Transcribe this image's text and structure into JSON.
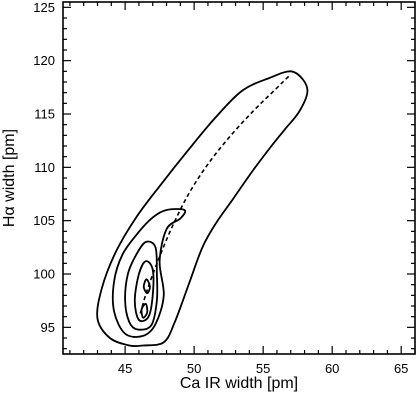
{
  "chart_data": {
    "type": "contour",
    "title": "",
    "xlabel": "Ca IR width [pm]",
    "ylabel": "Hα width [pm]",
    "xlim": [
      40.5,
      66
    ],
    "ylim": [
      92.5,
      125.5
    ],
    "x_ticks": [
      45,
      50,
      55,
      60,
      65
    ],
    "y_ticks": [
      95,
      100,
      105,
      110,
      115,
      120,
      125
    ],
    "x_minor_step": 1,
    "y_minor_step": 1,
    "grid": false,
    "contours": [
      {
        "level_index": 1,
        "points": [
          [
            46.3,
            93.3
          ],
          [
            47.8,
            93.6
          ],
          [
            48.6,
            95.5
          ],
          [
            49.6,
            99.0
          ],
          [
            50.6,
            102.5
          ],
          [
            51.6,
            104.8
          ],
          [
            52.8,
            107.0
          ],
          [
            54.2,
            109.6
          ],
          [
            55.6,
            112.0
          ],
          [
            56.6,
            113.6
          ],
          [
            57.6,
            115.2
          ],
          [
            58.2,
            117.0
          ],
          [
            57.9,
            118.2
          ],
          [
            57.0,
            119.0
          ],
          [
            55.5,
            118.4
          ],
          [
            53.5,
            117.2
          ],
          [
            51.5,
            114.6
          ],
          [
            49.5,
            111.5
          ],
          [
            47.6,
            108.4
          ],
          [
            45.8,
            105.3
          ],
          [
            44.3,
            102.0
          ],
          [
            43.3,
            98.6
          ],
          [
            43.0,
            95.8
          ],
          [
            43.9,
            94.0
          ],
          [
            45.3,
            93.3
          ],
          [
            46.3,
            93.3
          ]
        ]
      },
      {
        "level_index": 2,
        "points": [
          [
            45.0,
            94.4
          ],
          [
            46.3,
            94.2
          ],
          [
            47.2,
            95.3
          ],
          [
            47.8,
            98.0
          ],
          [
            47.5,
            101.2
          ],
          [
            48.0,
            104.2
          ],
          [
            49.0,
            105.2
          ],
          [
            49.3,
            106.0
          ],
          [
            48.0,
            106.0
          ],
          [
            47.0,
            105.3
          ],
          [
            45.9,
            103.8
          ],
          [
            44.8,
            101.8
          ],
          [
            44.2,
            99.3
          ],
          [
            44.2,
            96.5
          ],
          [
            45.0,
            94.4
          ]
        ]
      },
      {
        "level_index": 3,
        "points": [
          [
            45.9,
            94.8
          ],
          [
            46.9,
            95.2
          ],
          [
            47.3,
            97.5
          ],
          [
            47.3,
            100.0
          ],
          [
            47.2,
            102.5
          ],
          [
            46.5,
            103.0
          ],
          [
            45.8,
            101.8
          ],
          [
            45.2,
            100.0
          ],
          [
            45.0,
            97.5
          ],
          [
            45.3,
            95.5
          ],
          [
            45.9,
            94.8
          ]
        ]
      },
      {
        "level_index": 4,
        "points": [
          [
            46.0,
            95.7
          ],
          [
            46.7,
            96.0
          ],
          [
            47.0,
            98.0
          ],
          [
            47.0,
            100.4
          ],
          [
            46.5,
            101.2
          ],
          [
            46.0,
            100.0
          ],
          [
            45.7,
            97.5
          ],
          [
            46.0,
            95.7
          ]
        ]
      },
      {
        "level_index": 5,
        "points": [
          [
            46.3,
            95.9
          ],
          [
            46.6,
            96.4
          ],
          [
            46.5,
            97.2
          ],
          [
            46.2,
            96.7
          ],
          [
            46.3,
            95.9
          ]
        ]
      },
      {
        "level_index": 6,
        "points": [
          [
            46.6,
            98.2
          ],
          [
            46.8,
            98.8
          ],
          [
            46.55,
            99.5
          ],
          [
            46.35,
            98.8
          ],
          [
            46.6,
            98.2
          ]
        ]
      }
    ],
    "trend_line": {
      "style": "dashed",
      "points": [
        [
          46.1,
          96.3
        ],
        [
          46.6,
          98.5
        ],
        [
          47.4,
          101.3
        ],
        [
          48.4,
          104.4
        ],
        [
          49.6,
          107.5
        ],
        [
          51.0,
          110.3
        ],
        [
          52.6,
          112.9
        ],
        [
          54.3,
          115.3
        ],
        [
          55.8,
          117.2
        ],
        [
          56.9,
          118.6
        ]
      ]
    }
  }
}
